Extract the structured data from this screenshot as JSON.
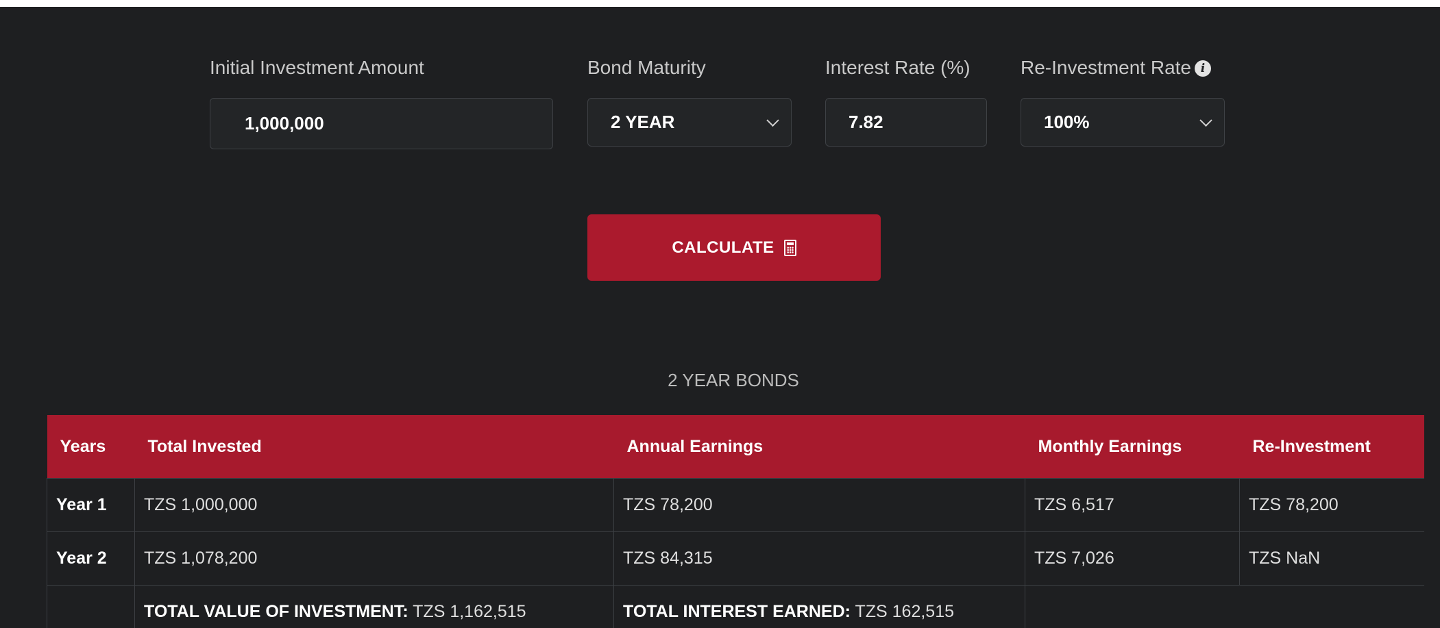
{
  "form": {
    "initial_investment": {
      "label": "Initial Investment Amount",
      "value": "1,000,000"
    },
    "bond_maturity": {
      "label": "Bond Maturity",
      "value": "2 YEAR"
    },
    "interest_rate": {
      "label": "Interest Rate (%)",
      "value": "7.82"
    },
    "reinvestment_rate": {
      "label": "Re-Investment Rate",
      "value": "100%",
      "info_icon": "info-icon"
    },
    "calculate_label": "CALCULATE",
    "calculate_icon": "calculator-icon"
  },
  "results": {
    "title": "2 YEAR BONDS",
    "headers": [
      "Years",
      "Total Invested",
      "Annual Earnings",
      "Monthly Earnings",
      "Re-Investment"
    ],
    "rows": [
      {
        "year": "Year 1",
        "total_invested": "TZS 1,000,000",
        "annual_earnings": "TZS 78,200",
        "monthly_earnings": "TZS 6,517",
        "reinvestment": "TZS 78,200"
      },
      {
        "year": "Year 2",
        "total_invested": "TZS 1,078,200",
        "annual_earnings": "TZS 84,315",
        "monthly_earnings": "TZS 7,026",
        "reinvestment": "TZS NaN"
      }
    ],
    "totals": {
      "total_value_label": "TOTAL VALUE OF INVESTMENT:",
      "total_value": "TZS 1,162,515",
      "total_interest_label": "TOTAL INTEREST EARNED:",
      "total_interest": "TZS 162,515"
    }
  },
  "colors": {
    "background": "#1e1f21",
    "accent": "#a71a2d",
    "input_bg": "#232527",
    "border": "#3c3f43"
  }
}
